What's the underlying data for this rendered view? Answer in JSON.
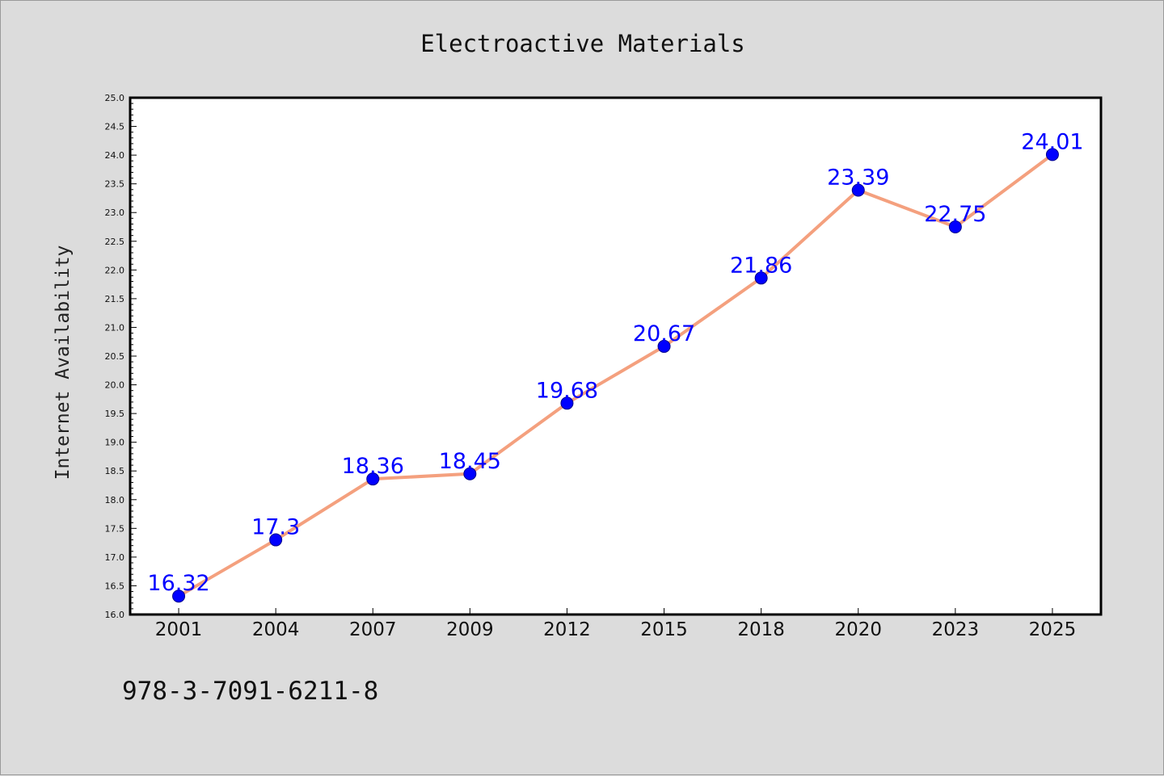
{
  "colors": {
    "background": "#dcdcdc",
    "plot_background": "#ffffff",
    "line": "#f4a07e",
    "marker": "#0000ff",
    "label": "#0000ff"
  },
  "footer": {
    "text": "978-3-7091-6211-8"
  },
  "chart_data": {
    "type": "line",
    "title": "Electroactive Materials",
    "xlabel": "",
    "ylabel": "Internet Availability",
    "categories": [
      "2001",
      "2004",
      "2007",
      "2009",
      "2012",
      "2015",
      "2018",
      "2020",
      "2023",
      "2025"
    ],
    "series": [
      {
        "values": [
          16.32,
          17.3,
          18.36,
          18.45,
          19.68,
          20.67,
          21.86,
          23.39,
          22.75,
          24.01
        ],
        "labels": [
          "16.32",
          "17.3",
          "18.36",
          "18.45",
          "19.68",
          "20.67",
          "21.86",
          "23.39",
          "22.75",
          "24.01"
        ]
      }
    ],
    "ylim": [
      16.0,
      25.0
    ],
    "yticks": [
      "16.0",
      "16.5",
      "17.0",
      "17.5",
      "18.0",
      "18.5",
      "19.0",
      "19.5",
      "20.0",
      "20.5",
      "21.0",
      "21.5",
      "22.0",
      "22.5",
      "23.0",
      "23.5",
      "24.0",
      "24.5",
      "25.0"
    ],
    "grid": false,
    "legend": "none"
  }
}
